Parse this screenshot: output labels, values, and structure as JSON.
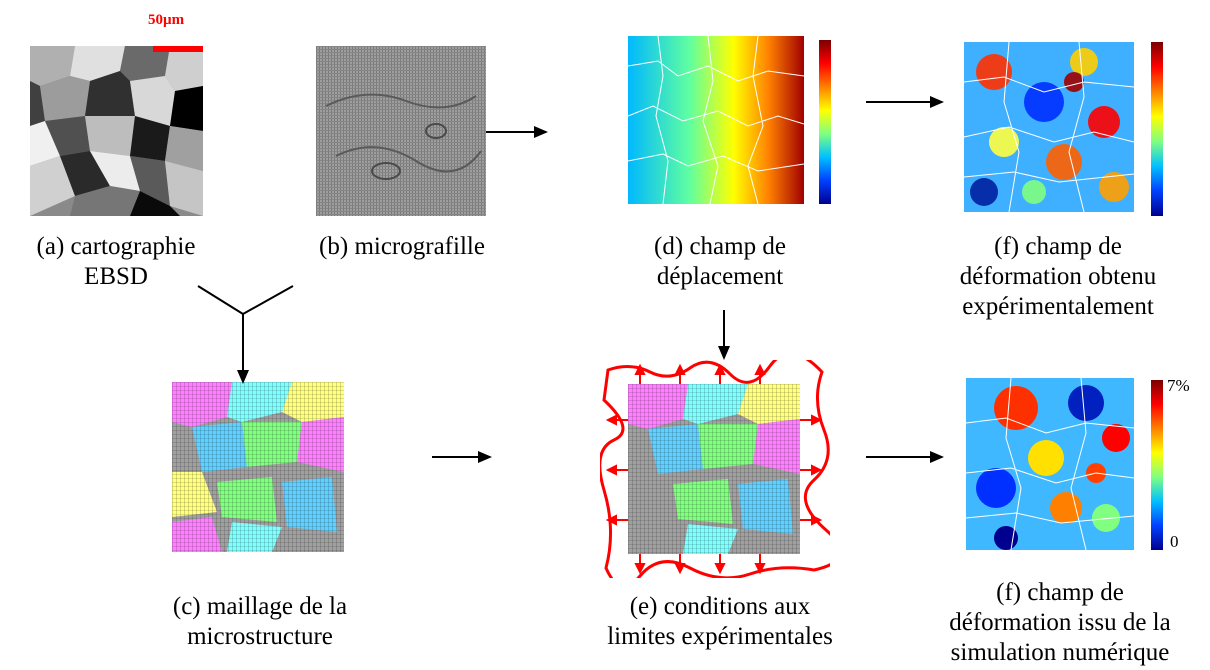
{
  "scale": {
    "label": "50µm"
  },
  "captions": {
    "a": [
      "(a) cartographie",
      "EBSD"
    ],
    "b": [
      "(b) micrografille"
    ],
    "c": [
      "(c) maillage de la",
      "microstructure"
    ],
    "d": [
      "(d) champ de",
      "déplacement"
    ],
    "e": [
      "(e) conditions aux",
      "limites expérimentales"
    ],
    "f1": [
      "(f) champ de",
      "déformation obtenu",
      "expérimentalement"
    ],
    "f2": [
      "(f) champ de",
      "déformation issu de la",
      "simulation numérique"
    ]
  },
  "colorbar_simulation": {
    "max_label": "7%",
    "min_label": "0"
  },
  "colors": {
    "accent_red": "#ff0000",
    "arrow": "#000000"
  }
}
